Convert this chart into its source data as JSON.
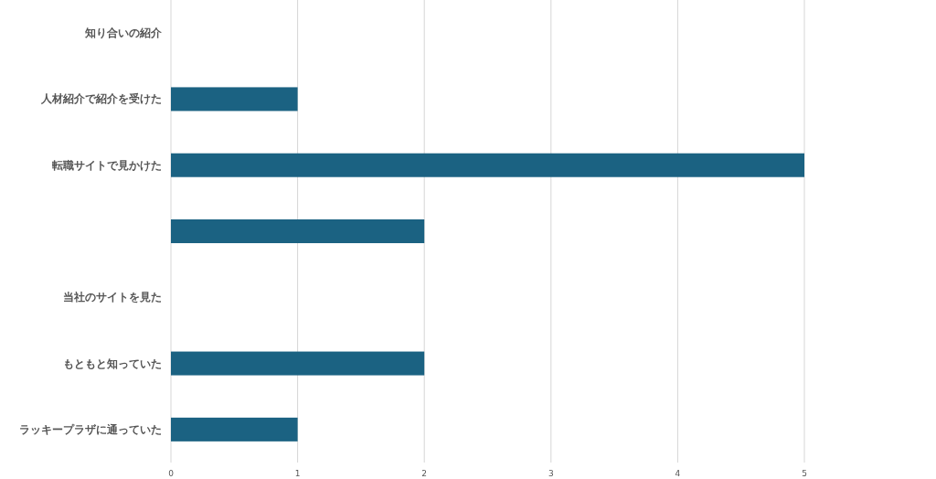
{
  "chart_data": {
    "type": "bar",
    "orientation": "horizontal",
    "categories": [
      "知り合いの紹介",
      "人材紹介で紹介を受けた",
      "転職サイトで見かけた",
      null,
      "当社のサイトを見た",
      "もともと知っていた",
      "ラッキープラザに通っていた"
    ],
    "values": [
      0,
      1,
      5,
      2,
      0,
      2,
      1
    ],
    "color": "#1b6282",
    "xlim": [
      0,
      5
    ],
    "xticks": [
      0,
      1,
      2,
      3,
      4,
      5
    ],
    "grid": "x"
  }
}
